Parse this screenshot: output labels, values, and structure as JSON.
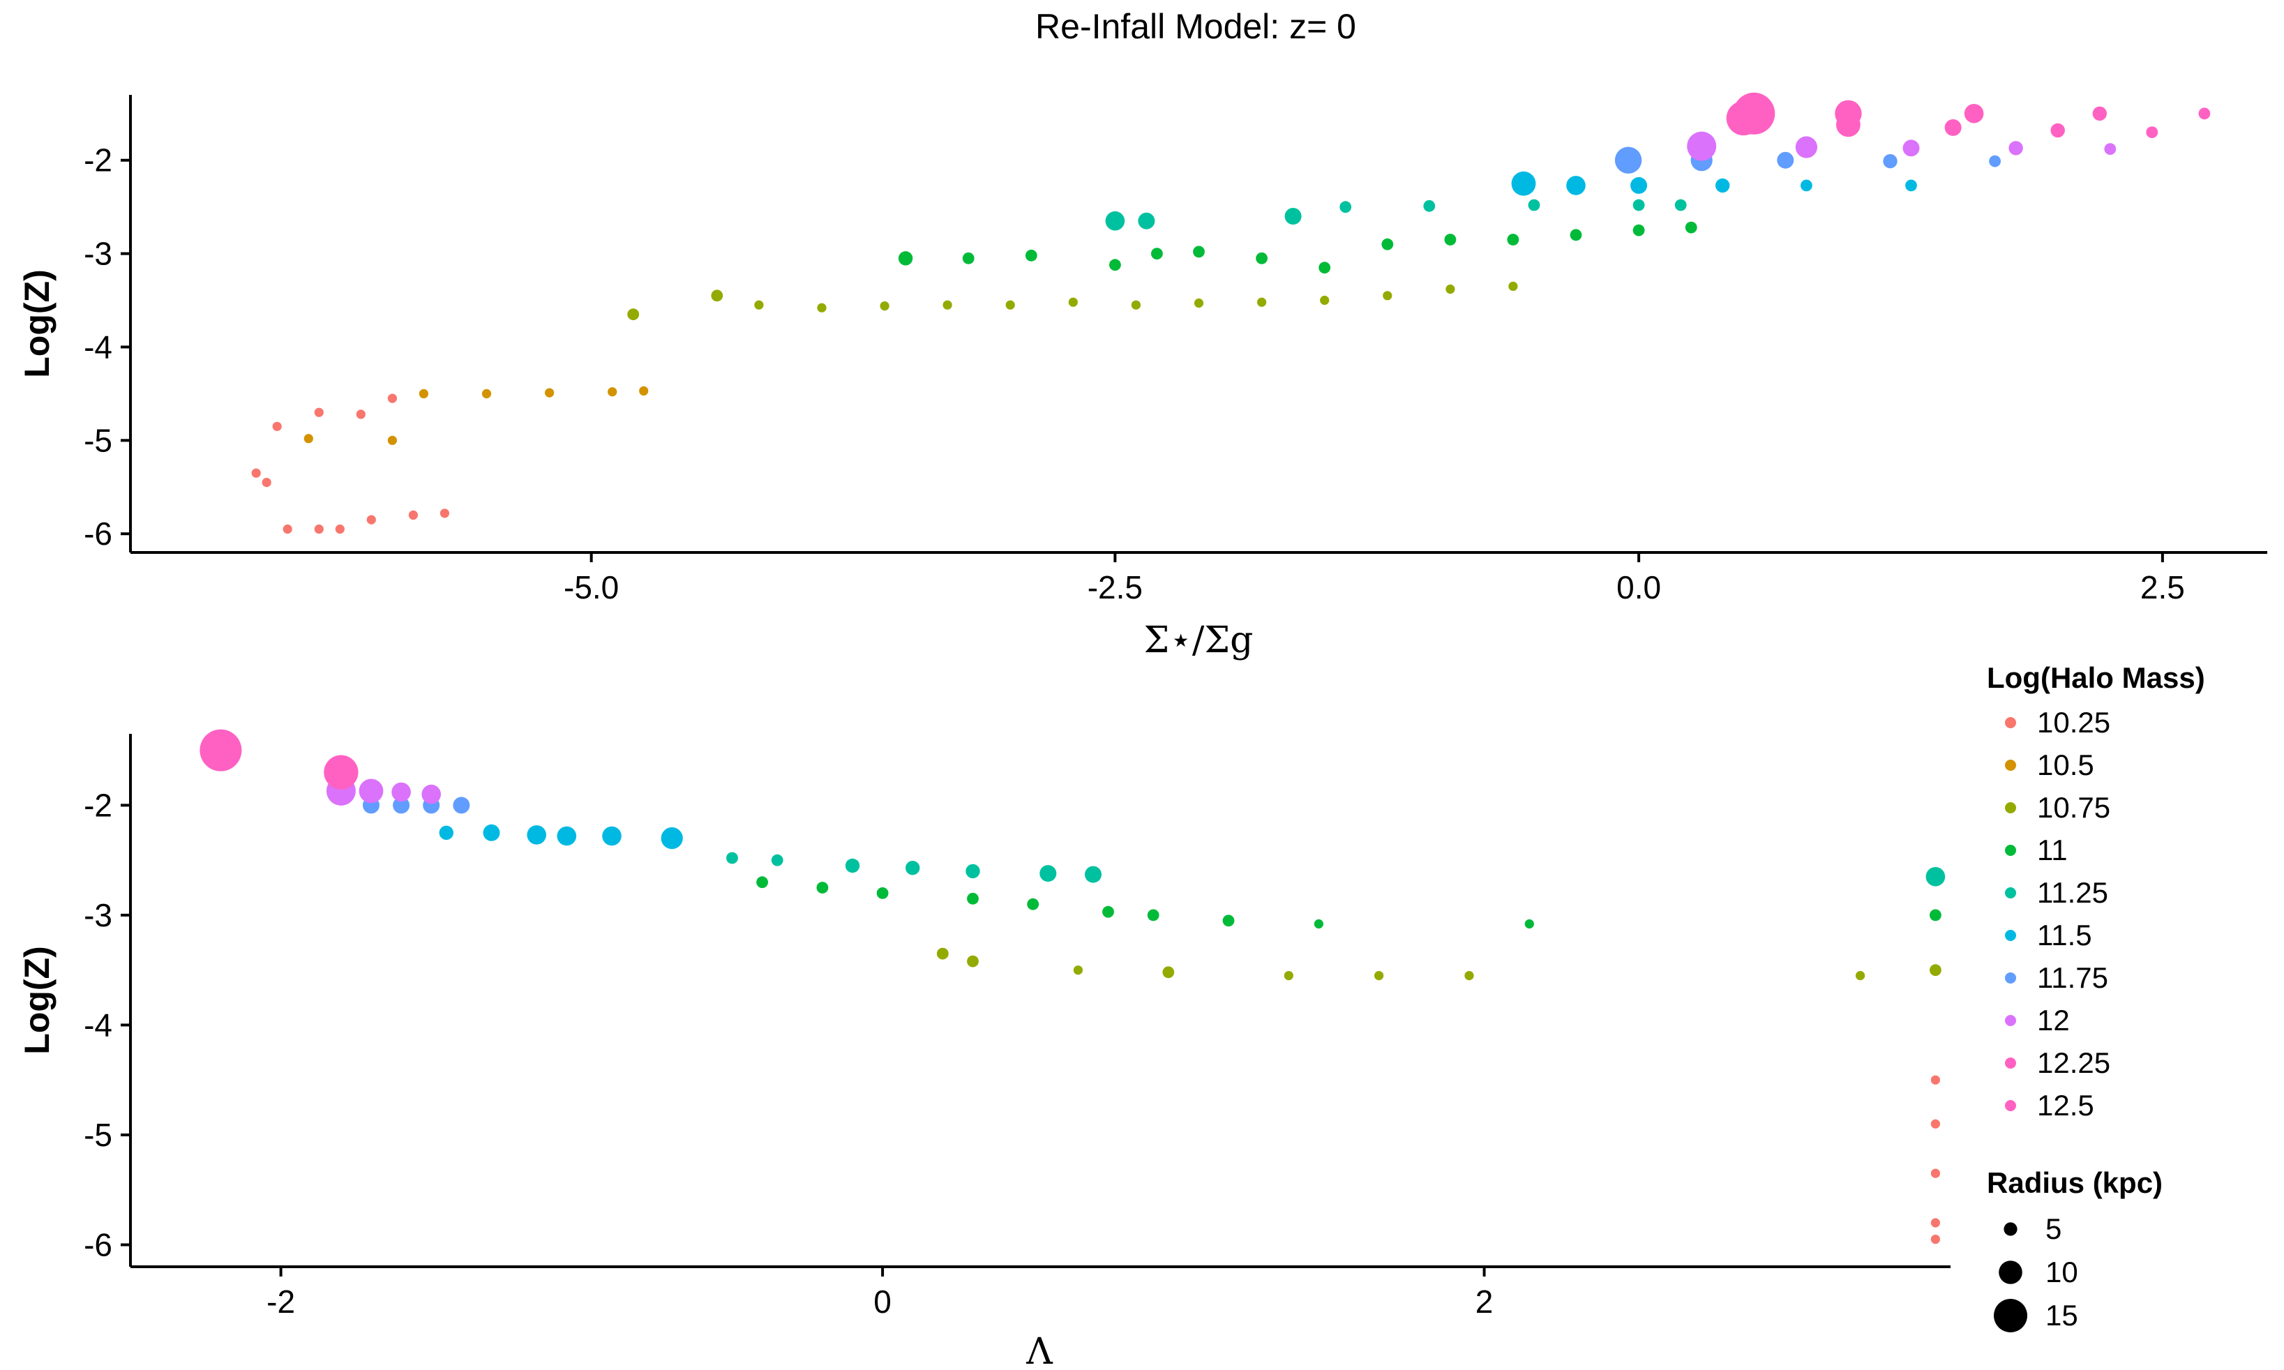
{
  "chart_data": [
    {
      "type": "scatter",
      "title": "Re-Infall Model: z= 0",
      "xlabel": "Σ⋆/Σg",
      "ylabel": "Log(Z)",
      "xlim": [
        -7.2,
        3.0
      ],
      "ylim": [
        -6.2,
        -1.3
      ],
      "x_ticks": [
        -5.0,
        -2.5,
        0.0,
        2.5
      ],
      "x_tick_labels": [
        "-5.0",
        "-2.5",
        "0.0",
        "2.5"
      ],
      "y_ticks": [
        -2,
        -3,
        -4,
        -5,
        -6
      ],
      "y_tick_labels": [
        "-2",
        "-3",
        "-4",
        "-5",
        "-6"
      ],
      "series": [
        {
          "name": "10.25",
          "color": "#F8766D",
          "points": [
            [
              -6.5,
              -4.85,
              2
            ],
            [
              -6.3,
              -4.7,
              2
            ],
            [
              -6.1,
              -4.72,
              2
            ],
            [
              -5.95,
              -4.55,
              2
            ],
            [
              -6.6,
              -5.35,
              2
            ],
            [
              -6.55,
              -5.45,
              2
            ],
            [
              -6.45,
              -5.95,
              2
            ],
            [
              -6.3,
              -5.95,
              2
            ],
            [
              -6.2,
              -5.95,
              2
            ],
            [
              -6.05,
              -5.85,
              2
            ],
            [
              -5.85,
              -5.8,
              2
            ],
            [
              -5.7,
              -5.78,
              2
            ]
          ]
        },
        {
          "name": "10.5",
          "color": "#D39200",
          "points": [
            [
              -6.35,
              -4.98,
              2
            ],
            [
              -5.95,
              -5.0,
              2
            ],
            [
              -5.8,
              -4.5,
              2
            ],
            [
              -5.5,
              -4.5,
              2
            ],
            [
              -5.2,
              -4.49,
              2
            ],
            [
              -4.9,
              -4.48,
              2
            ],
            [
              -4.75,
              -4.47,
              2
            ]
          ]
        },
        {
          "name": "10.75",
          "color": "#93AA00",
          "points": [
            [
              -4.8,
              -3.65,
              3
            ],
            [
              -4.4,
              -3.45,
              3
            ],
            [
              -4.2,
              -3.55,
              2
            ],
            [
              -3.9,
              -3.58,
              2
            ],
            [
              -3.6,
              -3.56,
              2
            ],
            [
              -3.3,
              -3.55,
              2
            ],
            [
              -3.0,
              -3.55,
              2
            ],
            [
              -2.7,
              -3.52,
              2
            ],
            [
              -2.4,
              -3.55,
              2
            ],
            [
              -2.1,
              -3.53,
              2
            ],
            [
              -1.8,
              -3.52,
              2
            ],
            [
              -1.5,
              -3.5,
              2
            ],
            [
              -1.2,
              -3.45,
              2
            ],
            [
              -0.9,
              -3.38,
              2
            ],
            [
              -0.6,
              -3.35,
              2
            ]
          ]
        },
        {
          "name": "11",
          "color": "#00BA38",
          "points": [
            [
              -3.5,
              -3.05,
              4
            ],
            [
              -3.2,
              -3.05,
              3
            ],
            [
              -2.9,
              -3.02,
              3
            ],
            [
              -2.5,
              -3.12,
              3
            ],
            [
              -2.3,
              -3.0,
              3
            ],
            [
              -2.1,
              -2.98,
              3
            ],
            [
              -1.8,
              -3.05,
              3
            ],
            [
              -1.5,
              -3.15,
              3
            ],
            [
              -1.2,
              -2.9,
              3
            ],
            [
              -0.9,
              -2.85,
              3
            ],
            [
              -0.6,
              -2.85,
              3
            ],
            [
              -0.3,
              -2.8,
              3
            ],
            [
              0.0,
              -2.75,
              3
            ],
            [
              0.25,
              -2.72,
              3
            ]
          ]
        },
        {
          "name": "11.25",
          "color": "#00C19F",
          "points": [
            [
              -2.5,
              -2.65,
              6
            ],
            [
              -2.35,
              -2.65,
              5
            ],
            [
              -1.65,
              -2.6,
              5
            ],
            [
              -1.4,
              -2.5,
              3
            ],
            [
              -1.0,
              -2.49,
              3
            ],
            [
              -0.5,
              -2.48,
              3
            ],
            [
              0.0,
              -2.48,
              3
            ],
            [
              0.2,
              -2.48,
              3
            ]
          ]
        },
        {
          "name": "11.5",
          "color": "#00B9E3",
          "points": [
            [
              -0.55,
              -2.25,
              8
            ],
            [
              -0.3,
              -2.27,
              6
            ],
            [
              0.0,
              -2.27,
              5
            ],
            [
              0.4,
              -2.27,
              4
            ],
            [
              0.8,
              -2.27,
              3
            ],
            [
              1.3,
              -2.27,
              3
            ]
          ]
        },
        {
          "name": "11.75",
          "color": "#619CFF",
          "points": [
            [
              -0.05,
              -2.0,
              9
            ],
            [
              0.3,
              -2.0,
              7
            ],
            [
              0.7,
              -2.0,
              5
            ],
            [
              1.2,
              -2.01,
              4
            ],
            [
              1.7,
              -2.01,
              3
            ]
          ]
        },
        {
          "name": "12",
          "color": "#DB72FB",
          "points": [
            [
              0.3,
              -1.85,
              10
            ],
            [
              0.8,
              -1.86,
              7
            ],
            [
              1.3,
              -1.87,
              5
            ],
            [
              1.8,
              -1.87,
              4
            ],
            [
              2.25,
              -1.88,
              3
            ]
          ]
        },
        {
          "name": "12.25",
          "color": "#FF61C3",
          "points": [
            [
              0.5,
              -1.55,
              12
            ],
            [
              1.0,
              -1.62,
              8
            ],
            [
              1.5,
              -1.65,
              5
            ],
            [
              2.0,
              -1.68,
              4
            ],
            [
              2.45,
              -1.7,
              3
            ]
          ]
        },
        {
          "name": "12.5",
          "color": "#FF61C3",
          "points": [
            [
              0.55,
              -1.5,
              15
            ],
            [
              1.0,
              -1.5,
              9
            ],
            [
              1.6,
              -1.5,
              6
            ],
            [
              2.2,
              -1.5,
              4
            ],
            [
              2.7,
              -1.5,
              3
            ]
          ]
        }
      ]
    },
    {
      "type": "scatter",
      "xlabel": "Λ",
      "ylabel": "Log(Z)",
      "xlim": [
        -2.5,
        3.55
      ],
      "ylim": [
        -6.2,
        -1.35
      ],
      "x_ticks": [
        -2,
        0,
        2
      ],
      "x_tick_labels": [
        "-2",
        "0",
        "2"
      ],
      "y_ticks": [
        -2,
        -3,
        -4,
        -5,
        -6
      ],
      "y_tick_labels": [
        "-2",
        "-3",
        "-4",
        "-5",
        "-6"
      ],
      "series": [
        {
          "name": "10.25",
          "color": "#F8766D",
          "points": [
            [
              3.5,
              -4.5,
              2
            ],
            [
              3.5,
              -4.9,
              2
            ],
            [
              3.5,
              -5.35,
              2
            ],
            [
              3.5,
              -5.8,
              2
            ],
            [
              3.5,
              -5.95,
              2
            ]
          ]
        },
        {
          "name": "10.75",
          "color": "#93AA00",
          "points": [
            [
              0.2,
              -3.35,
              3
            ],
            [
              0.3,
              -3.42,
              3
            ],
            [
              0.65,
              -3.5,
              2
            ],
            [
              0.95,
              -3.52,
              3
            ],
            [
              1.35,
              -3.55,
              2
            ],
            [
              1.65,
              -3.55,
              2
            ],
            [
              1.95,
              -3.55,
              2
            ],
            [
              3.25,
              -3.55,
              2
            ],
            [
              3.5,
              -3.5,
              3
            ]
          ]
        },
        {
          "name": "11",
          "color": "#00BA38",
          "points": [
            [
              -0.4,
              -2.7,
              3
            ],
            [
              -0.2,
              -2.75,
              3
            ],
            [
              0.0,
              -2.8,
              3
            ],
            [
              0.3,
              -2.85,
              3
            ],
            [
              0.5,
              -2.9,
              3
            ],
            [
              0.75,
              -2.97,
              3
            ],
            [
              0.9,
              -3.0,
              3
            ],
            [
              1.15,
              -3.05,
              3
            ],
            [
              1.45,
              -3.08,
              2
            ],
            [
              2.15,
              -3.08,
              2
            ],
            [
              3.5,
              -3.0,
              3
            ]
          ]
        },
        {
          "name": "11.25",
          "color": "#00C19F",
          "points": [
            [
              -0.5,
              -2.48,
              3
            ],
            [
              -0.35,
              -2.5,
              3
            ],
            [
              -0.1,
              -2.55,
              4
            ],
            [
              0.1,
              -2.57,
              4
            ],
            [
              0.3,
              -2.6,
              4
            ],
            [
              0.55,
              -2.62,
              5
            ],
            [
              0.7,
              -2.63,
              5
            ],
            [
              3.5,
              -2.65,
              6
            ]
          ]
        },
        {
          "name": "11.5",
          "color": "#00B9E3",
          "points": [
            [
              -1.45,
              -2.25,
              4
            ],
            [
              -1.3,
              -2.25,
              5
            ],
            [
              -1.15,
              -2.27,
              6
            ],
            [
              -1.05,
              -2.28,
              6
            ],
            [
              -0.9,
              -2.28,
              6
            ],
            [
              -0.7,
              -2.3,
              7
            ]
          ]
        },
        {
          "name": "11.75",
          "color": "#619CFF",
          "points": [
            [
              -1.7,
              -2.0,
              5
            ],
            [
              -1.6,
              -2.0,
              5
            ],
            [
              -1.5,
              -2.0,
              5
            ],
            [
              -1.4,
              -2.0,
              5
            ]
          ]
        },
        {
          "name": "12",
          "color": "#DB72FB",
          "points": [
            [
              -1.8,
              -1.87,
              10
            ],
            [
              -1.7,
              -1.87,
              8
            ],
            [
              -1.6,
              -1.88,
              6
            ],
            [
              -1.5,
              -1.9,
              6
            ]
          ]
        },
        {
          "name": "12.25",
          "color": "#FF61C3",
          "points": [
            [
              -1.8,
              -1.7,
              12
            ]
          ]
        },
        {
          "name": "12.5",
          "color": "#FF61C3",
          "points": [
            [
              -2.2,
              -1.5,
              15
            ]
          ]
        }
      ]
    }
  ],
  "legend": {
    "color_title": "Log(Halo Mass)",
    "color_entries": [
      {
        "label": "10.25",
        "color": "#F8766D"
      },
      {
        "label": "10.5",
        "color": "#D39200"
      },
      {
        "label": "10.75",
        "color": "#93AA00"
      },
      {
        "label": "11",
        "color": "#00BA38"
      },
      {
        "label": "11.25",
        "color": "#00C19F"
      },
      {
        "label": "11.5",
        "color": "#00B9E3"
      },
      {
        "label": "11.75",
        "color": "#619CFF"
      },
      {
        "label": "12",
        "color": "#DB72FB"
      },
      {
        "label": "12.25",
        "color": "#FF61C3"
      },
      {
        "label": "12.5",
        "color": "#FF61C3"
      }
    ],
    "size_title": "Radius (kpc)",
    "size_entries": [
      {
        "label": "5",
        "value": 5
      },
      {
        "label": "10",
        "value": 10
      },
      {
        "label": "15",
        "value": 15
      }
    ]
  }
}
